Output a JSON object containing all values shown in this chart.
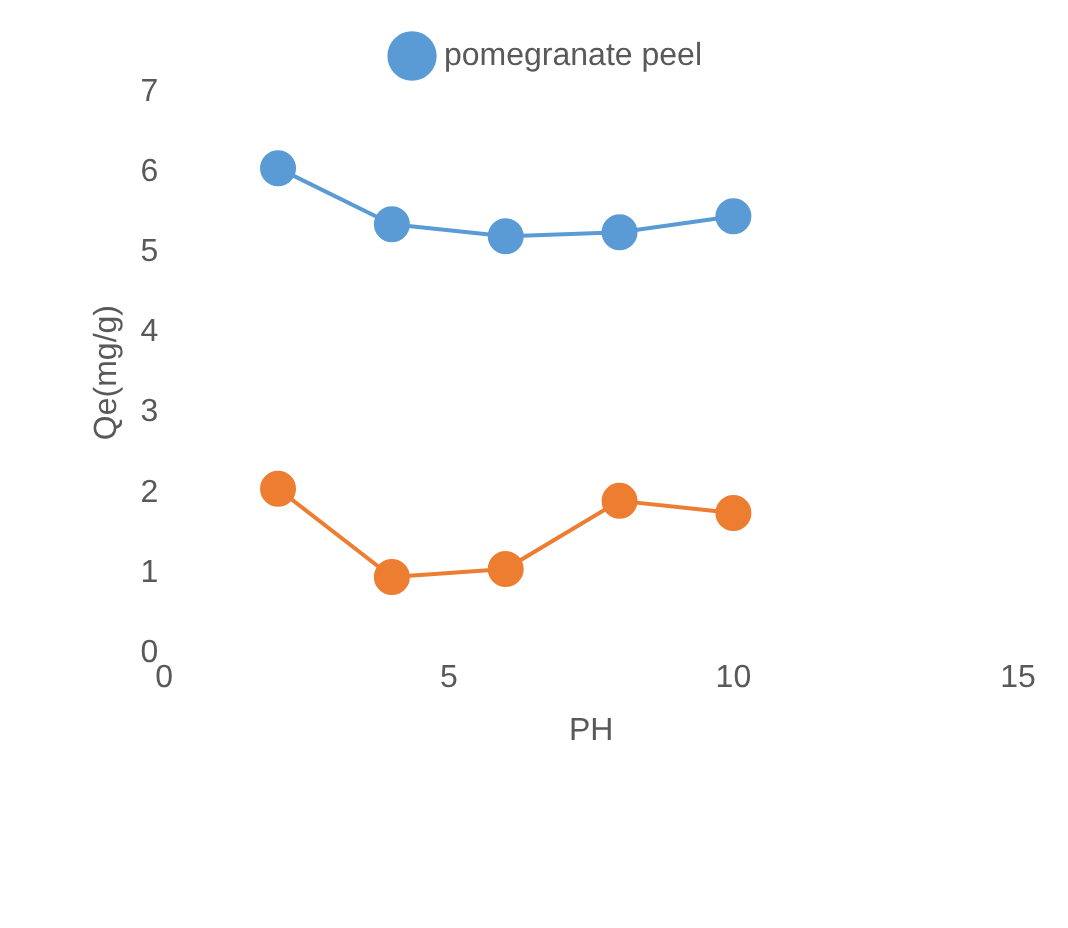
{
  "chart_data": {
    "type": "line",
    "xlabel": "PH",
    "ylabel": "Qe(mg/g)",
    "x": [
      2,
      4,
      6,
      8,
      10
    ],
    "series": [
      {
        "name": "pomegranate peel",
        "color": "#5b9bd5",
        "values": [
          6.05,
          5.35,
          5.2,
          5.25,
          5.45
        ]
      },
      {
        "color": "#ed7d31",
        "values": [
          2.05,
          0.95,
          1.05,
          1.9,
          1.75
        ]
      }
    ],
    "xlim": [
      0,
      15
    ],
    "xticks": [
      0,
      5,
      10,
      15
    ],
    "ylim": [
      0,
      7
    ],
    "yticks": [
      0,
      1,
      2,
      3,
      4,
      5,
      6,
      7
    ],
    "grid": false,
    "legend": "top",
    "marker": "circle",
    "line_style": "solid"
  }
}
